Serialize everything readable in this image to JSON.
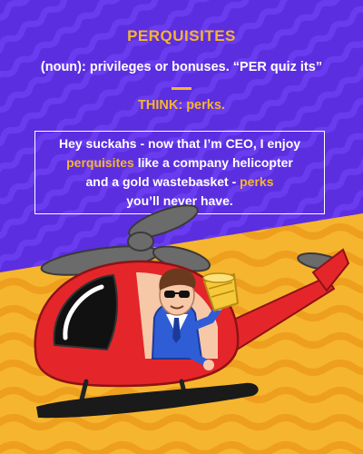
{
  "header": {
    "word": "PERQUISITES",
    "definition": "(noun): privileges or bonuses. “PER quiz its”",
    "think": "THINK: perks."
  },
  "quote": {
    "line1": "Hey suckahs - now that I’m CEO, I enjoy",
    "line2_hl": "perquisites",
    "line2_rest": " like a company helicopter",
    "line3_pre": "and a gold wastebasket - ",
    "line3_hl": "perks",
    "line4": "you’ll never have."
  },
  "colors": {
    "purple_bg": "#5B2EE0",
    "yellow_bg": "#F6B52E",
    "accent": "#F6B52E",
    "helicopter_red": "#E4262B"
  },
  "icons": [
    "helicopter-illustration",
    "ceo-pilot",
    "sunglasses-icon",
    "gold-wastebasket-icon",
    "rotor-icon"
  ]
}
